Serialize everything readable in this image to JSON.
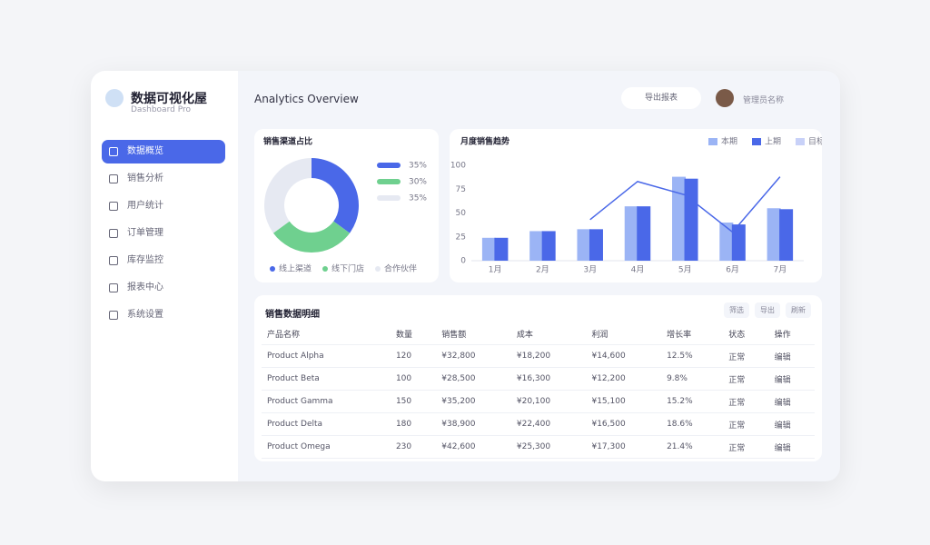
{
  "sidebar": {
    "title": "数据可视化屋",
    "subtitle": "Dashboard Pro",
    "menu": [
      "数据概览",
      "销售分析",
      "用户统计",
      "订单管理",
      "库存监控",
      "报表中心",
      "系统设置"
    ]
  },
  "header": {
    "title": "Analytics Overview",
    "button": "导出报表",
    "user": "管理员名称"
  },
  "chart_data": [
    {
      "type": "pie",
      "title": "销售渠道占比",
      "categories": [
        "线上渠道",
        "线下门店",
        "合作伙伴"
      ],
      "values": [
        35,
        30,
        35
      ],
      "value_labels": [
        "35%",
        "30%",
        "35%"
      ],
      "colors": [
        "#4a68e8",
        "#6fd08f",
        "#e6e9f2"
      ]
    },
    {
      "type": "bar",
      "title": "月度销售趋势",
      "categories": [
        "1月",
        "2月",
        "3月",
        "4月",
        "5月",
        "6月",
        "7月"
      ],
      "series": [
        {
          "name": "本期",
          "color": "#9bb4f5",
          "values": [
            24,
            31,
            33,
            57,
            88,
            40,
            55
          ]
        },
        {
          "name": "上期",
          "color": "#4a68e8",
          "values": [
            24,
            31,
            33,
            57,
            86,
            38,
            54
          ]
        },
        {
          "name": "目标",
          "color": "#4a68e8",
          "type": "line",
          "values": [
            null,
            null,
            43,
            83,
            69,
            30,
            88
          ]
        }
      ],
      "ylim": [
        0,
        100
      ],
      "yticks": [
        0,
        25,
        50,
        75,
        100
      ],
      "grid": false
    }
  ],
  "table": {
    "title": "销售数据明细",
    "tools": [
      "筛选",
      "导出",
      "刷新"
    ],
    "columns": [
      "产品名称",
      "数量",
      "销售额",
      "成本",
      "利润",
      "增长率",
      "状态",
      "操作"
    ],
    "rows": [
      [
        "Product Alpha",
        "120",
        "¥32,800",
        "¥18,200",
        "¥14,600",
        "12.5%",
        "正常",
        "编辑"
      ],
      [
        "Product Beta",
        "100",
        "¥28,500",
        "¥16,300",
        "¥12,200",
        "9.8%",
        "正常",
        "编辑"
      ],
      [
        "Product Gamma",
        "150",
        "¥35,200",
        "¥20,100",
        "¥15,100",
        "15.2%",
        "正常",
        "编辑"
      ],
      [
        "Product Delta",
        "180",
        "¥38,900",
        "¥22,400",
        "¥16,500",
        "18.6%",
        "正常",
        "编辑"
      ],
      [
        "Product Omega",
        "230",
        "¥42,600",
        "¥25,300",
        "¥17,300",
        "21.4%",
        "正常",
        "编辑"
      ]
    ]
  }
}
